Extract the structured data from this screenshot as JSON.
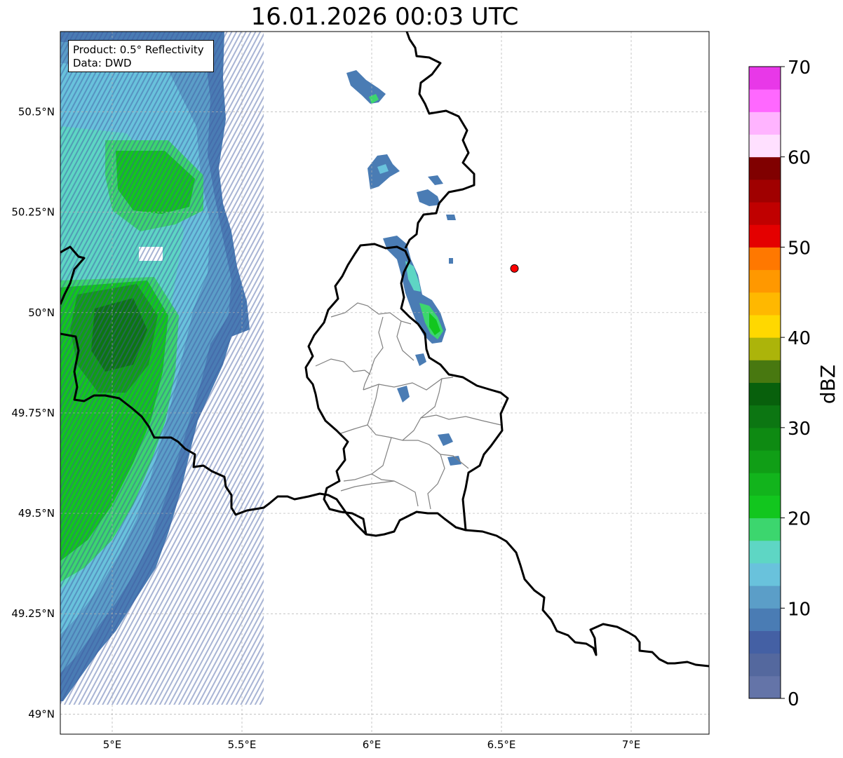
{
  "title": "16.01.2026 00:03 UTC",
  "info": {
    "product": "Product: 0.5° Reflectivity",
    "data": "Data: DWD"
  },
  "map": {
    "lon_range": [
      4.8,
      7.3
    ],
    "lat_range": [
      48.95,
      50.7
    ],
    "lon_ticks": [
      {
        "value": 5.0,
        "label": "5°E"
      },
      {
        "value": 5.5,
        "label": "5.5°E"
      },
      {
        "value": 6.0,
        "label": "6°E"
      },
      {
        "value": 6.5,
        "label": "6.5°E"
      },
      {
        "value": 7.0,
        "label": "7°E"
      }
    ],
    "lat_ticks": [
      {
        "value": 49.0,
        "label": "49°N"
      },
      {
        "value": 49.25,
        "label": "49.25°N"
      },
      {
        "value": 49.5,
        "label": "49.5°N"
      },
      {
        "value": 49.75,
        "label": "49.75°N"
      },
      {
        "value": 50.0,
        "label": "50°N"
      },
      {
        "value": 50.25,
        "label": "50.25°N"
      },
      {
        "value": 50.5,
        "label": "50.5°N"
      }
    ],
    "radar_site": {
      "lon": 6.55,
      "lat": 50.11,
      "color": "#ff0000"
    }
  },
  "colorbar": {
    "unit": "dBZ",
    "min": 0,
    "max": 70,
    "step": 2.5,
    "ticks": [
      {
        "value": 0,
        "label": "0"
      },
      {
        "value": 10,
        "label": "10"
      },
      {
        "value": 20,
        "label": "20"
      },
      {
        "value": 30,
        "label": "30"
      },
      {
        "value": 40,
        "label": "40"
      },
      {
        "value": 50,
        "label": "50"
      },
      {
        "value": 60,
        "label": "60"
      },
      {
        "value": 70,
        "label": "70"
      }
    ],
    "colors": [
      "#6474a8",
      "#54689e",
      "#4460a4",
      "#4a7cb4",
      "#5b9ec8",
      "#69c2dc",
      "#5ed6c4",
      "#3cd66e",
      "#12c61e",
      "#12b41c",
      "#109e16",
      "#0e8a12",
      "#0c7612",
      "#08600c",
      "#487810",
      "#acb40a",
      "#ffd800",
      "#ffb800",
      "#ff9800",
      "#ff7800",
      "#e40000",
      "#c00000",
      "#a00000",
      "#800000",
      "#ffe0ff",
      "#ffb4ff",
      "#ff68ff",
      "#e838e8"
    ]
  }
}
